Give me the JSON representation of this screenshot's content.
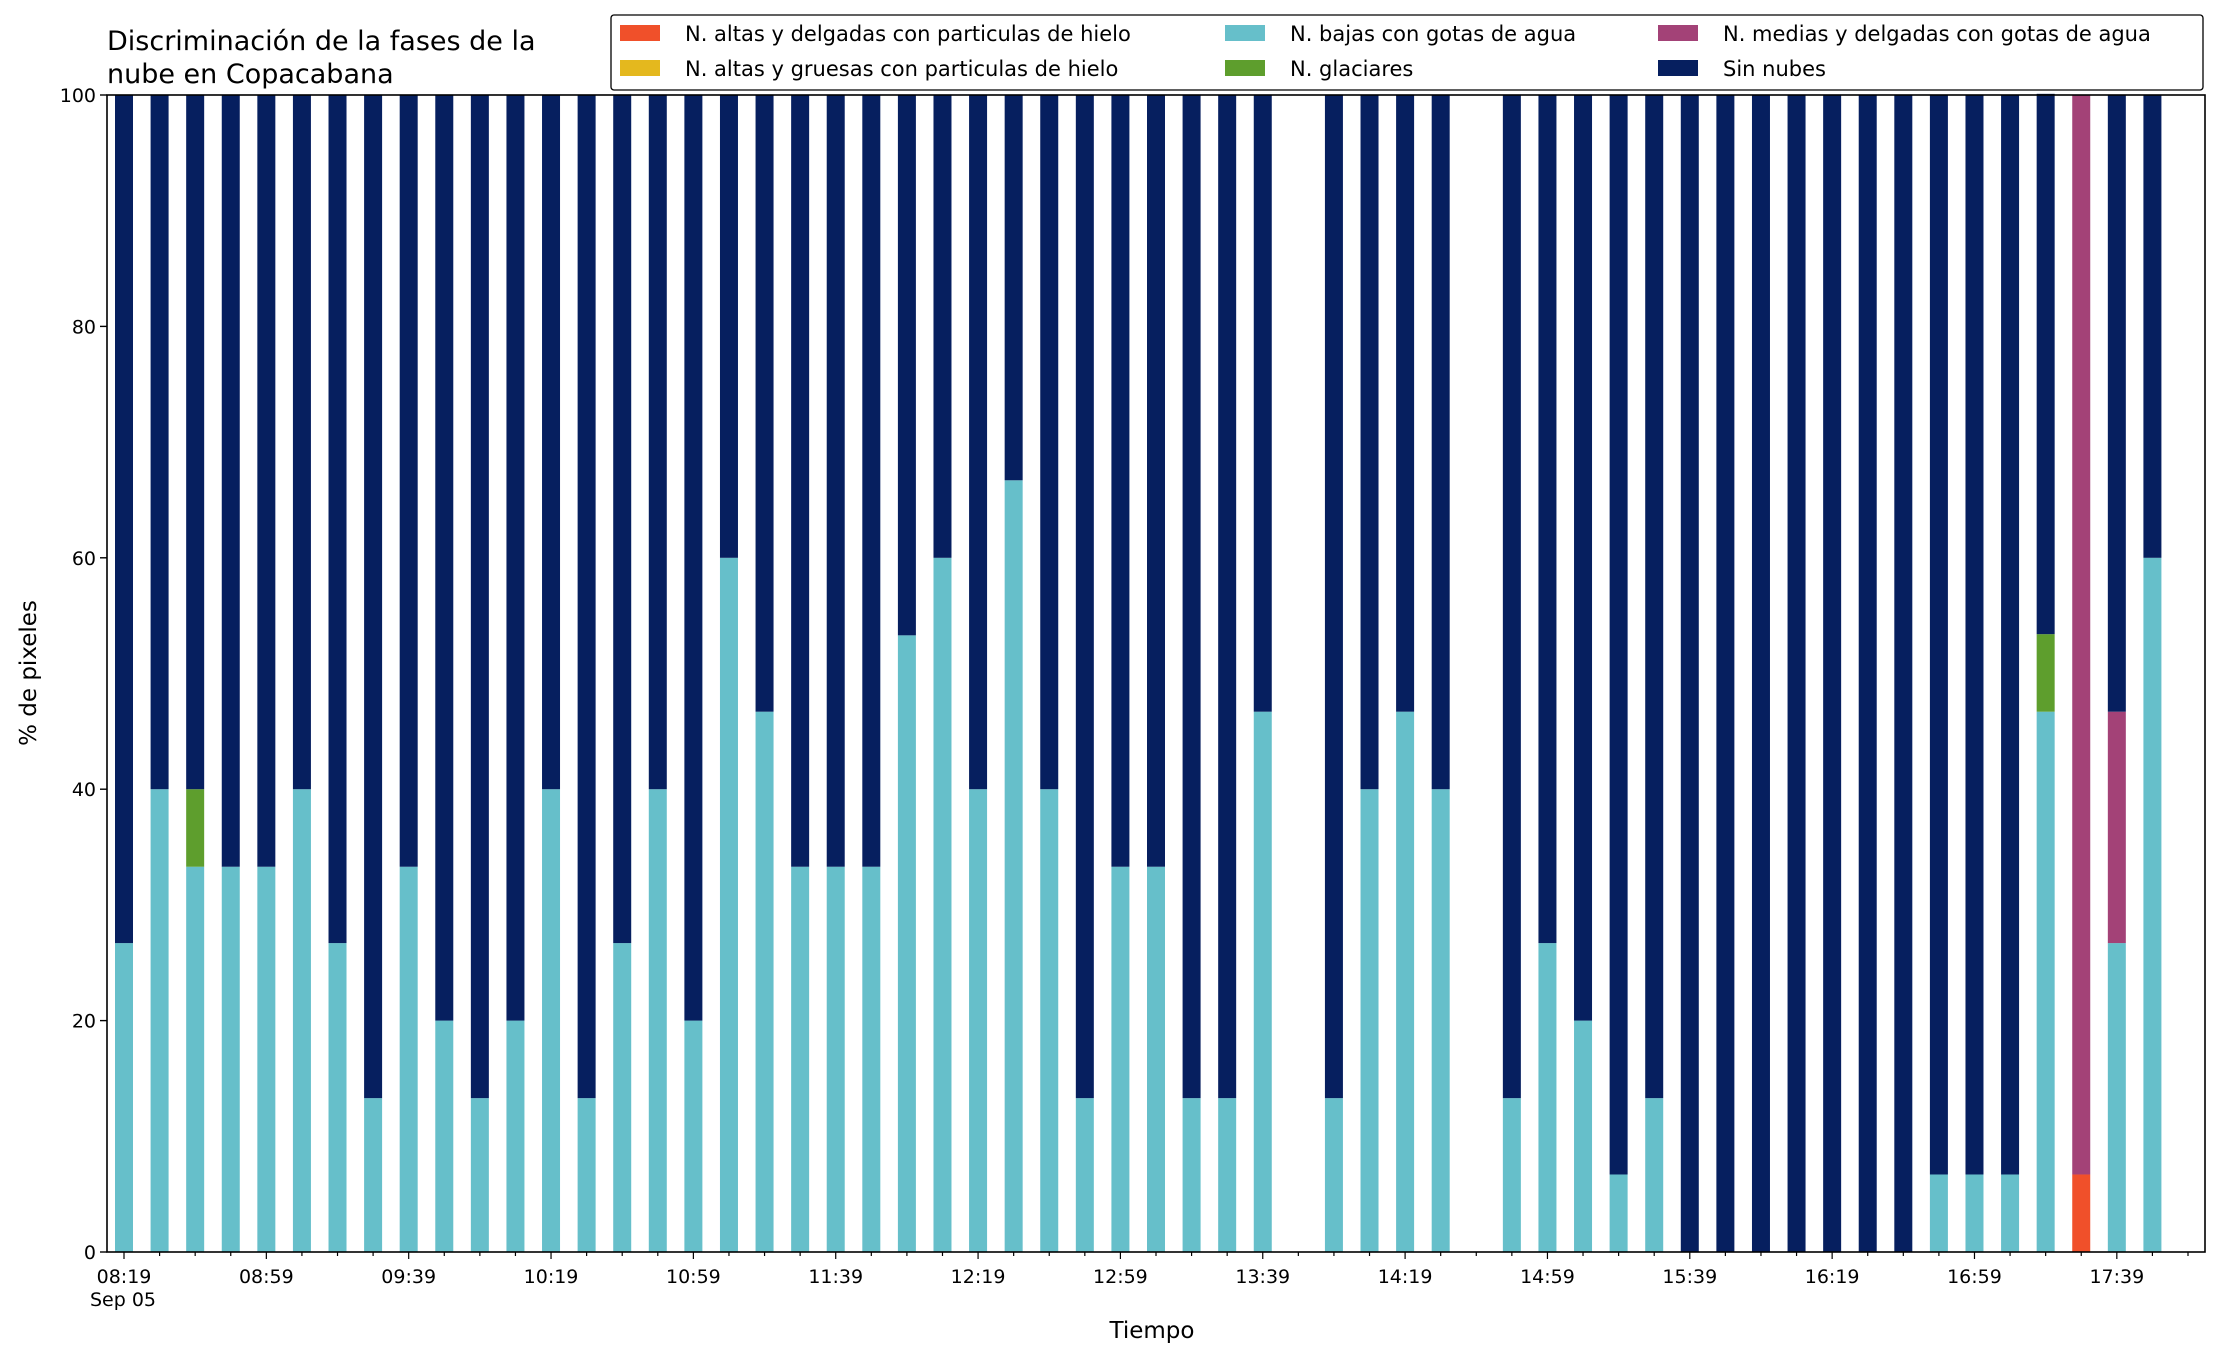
{
  "chart_data": {
    "type": "bar",
    "stacked": true,
    "title_lines": [
      "Discriminación de la fases de la",
      "nube en Copacabana"
    ],
    "xlabel": "Tiempo",
    "ylabel": "% de pixeles",
    "ylim": [
      0,
      100
    ],
    "yticks": [
      0,
      20,
      40,
      60,
      80,
      100
    ],
    "grid": false,
    "legend_position": "top-right",
    "x_start": "08:19",
    "x_interval_minutes": 10,
    "x_tick_labels": [
      "08:19",
      "08:59",
      "09:39",
      "10:19",
      "10:59",
      "11:39",
      "12:19",
      "12:59",
      "13:39",
      "14:19",
      "14:59",
      "15:39",
      "16:19",
      "16:59",
      "17:39"
    ],
    "x_date_label": "Sep 05",
    "categories": [
      "08:19",
      "08:29",
      "08:39",
      "08:49",
      "08:59",
      "09:09",
      "09:19",
      "09:29",
      "09:39",
      "09:49",
      "09:59",
      "10:09",
      "10:19",
      "10:29",
      "10:39",
      "10:49",
      "10:59",
      "11:09",
      "11:19",
      "11:29",
      "11:39",
      "11:49",
      "11:59",
      "12:09",
      "12:19",
      "12:29",
      "12:39",
      "12:49",
      "12:59",
      "13:09",
      "13:19",
      "13:29",
      "13:39",
      "13:49",
      "13:59",
      "14:09",
      "14:19",
      "14:29",
      "14:39",
      "14:49",
      "14:59",
      "15:09",
      "15:19",
      "15:29",
      "15:39",
      "15:49",
      "15:59",
      "16:09",
      "16:19",
      "16:29",
      "16:39",
      "16:49",
      "16:59",
      "17:09",
      "17:19",
      "17:29",
      "17:39",
      "17:49",
      "17:59"
    ],
    "series": [
      {
        "name": "N. altas y delgadas con particulas de hielo",
        "color": "#f0502a",
        "values": [
          0,
          0,
          0,
          0,
          0,
          0,
          0,
          0,
          0,
          0,
          0,
          0,
          0,
          0,
          0,
          0,
          0,
          0,
          0,
          0,
          0,
          0,
          0,
          0,
          0,
          0,
          0,
          0,
          0,
          0,
          0,
          0,
          0,
          null,
          0,
          0,
          0,
          0,
          null,
          0,
          0,
          0,
          0,
          0,
          0,
          0,
          0,
          0,
          0,
          0,
          0,
          0,
          0,
          0,
          0,
          6.7,
          0,
          0,
          null
        ]
      },
      {
        "name": "N. altas y gruesas con particulas de hielo",
        "color": "#e4b81e",
        "values": [
          0,
          0,
          0,
          0,
          0,
          0,
          0,
          0,
          0,
          0,
          0,
          0,
          0,
          0,
          0,
          0,
          0,
          0,
          0,
          0,
          0,
          0,
          0,
          0,
          0,
          0,
          0,
          0,
          0,
          0,
          0,
          0,
          0,
          null,
          0,
          0,
          0,
          0,
          null,
          0,
          0,
          0,
          0,
          0,
          0,
          0,
          0,
          0,
          0,
          0,
          0,
          0,
          0,
          0,
          0,
          0,
          0,
          0,
          null
        ]
      },
      {
        "name": "N. bajas con gotas de agua",
        "color": "#66bfca",
        "values": [
          26.7,
          40,
          33.3,
          33.3,
          33.3,
          40,
          26.7,
          13.3,
          33.3,
          20,
          13.3,
          20,
          40,
          13.3,
          26.7,
          40,
          20,
          60,
          46.7,
          33.3,
          33.3,
          33.3,
          53.3,
          60,
          40,
          66.7,
          40,
          13.3,
          33.3,
          33.3,
          13.3,
          13.3,
          46.7,
          null,
          13.3,
          40,
          46.7,
          40,
          null,
          13.3,
          26.7,
          20,
          6.7,
          13.3,
          0,
          0,
          0,
          0,
          0,
          0,
          0,
          6.7,
          6.7,
          6.7,
          46.7,
          0,
          26.7,
          60,
          null
        ]
      },
      {
        "name": "N. glaciares",
        "color": "#5e9e2d",
        "values": [
          0,
          0,
          6.7,
          0,
          0,
          0,
          0,
          0,
          0,
          0,
          0,
          0,
          0,
          0,
          0,
          0,
          0,
          0,
          0,
          0,
          0,
          0,
          0,
          0,
          0,
          0,
          0,
          0,
          0,
          0,
          0,
          0,
          0,
          null,
          0,
          0,
          0,
          0,
          null,
          0,
          0,
          0,
          0,
          0,
          0,
          0,
          0,
          0,
          0,
          0,
          0,
          0,
          0,
          0,
          6.7,
          0,
          0,
          0,
          null
        ]
      },
      {
        "name": "N. medias y delgadas con gotas de agua",
        "color": "#a34277",
        "values": [
          0,
          0,
          0,
          0,
          0,
          0,
          0,
          0,
          0,
          0,
          0,
          0,
          0,
          0,
          0,
          0,
          0,
          0,
          0,
          0,
          0,
          0,
          0,
          0,
          0,
          0,
          0,
          0,
          0,
          0,
          0,
          0,
          0,
          null,
          0,
          0,
          0,
          0,
          null,
          0,
          0,
          0,
          0,
          0,
          0,
          0,
          0,
          0,
          0,
          0,
          0,
          0,
          0,
          0,
          0,
          93.3,
          20,
          0,
          null
        ]
      },
      {
        "name": "Sin nubes",
        "color": "#061f5f",
        "values": [
          73.3,
          60,
          60,
          66.7,
          66.7,
          60,
          73.3,
          86.7,
          66.7,
          80,
          86.7,
          80,
          60,
          86.7,
          73.3,
          60,
          80,
          40,
          53.3,
          66.7,
          66.7,
          66.7,
          46.7,
          40,
          60,
          33.3,
          60,
          86.7,
          66.7,
          66.7,
          86.7,
          86.7,
          53.3,
          null,
          86.7,
          60,
          53.3,
          60,
          null,
          86.7,
          73.3,
          80,
          93.3,
          86.7,
          100,
          100,
          100,
          100,
          100,
          100,
          100,
          93.3,
          93.3,
          93.3,
          46.7,
          0,
          53.3,
          40,
          null
        ]
      }
    ]
  }
}
